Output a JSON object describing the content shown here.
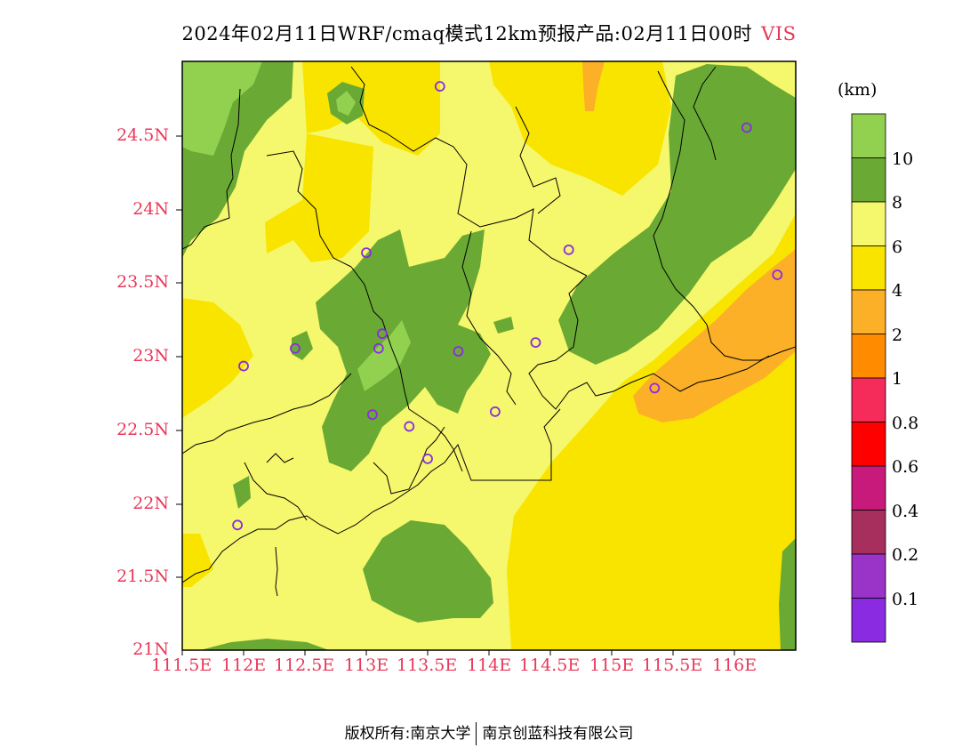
{
  "title": {
    "main": "2024年02月11日WRF/cmaq模式12km预报产品:02月11日00时",
    "variable": "VIS"
  },
  "axes": {
    "lat_ticks": [
      "24.5N",
      "24N",
      "23.5N",
      "23N",
      "22.5N",
      "22N",
      "21.5N",
      "21N"
    ],
    "lon_ticks": [
      "111.5E",
      "112E",
      "112.5E",
      "113E",
      "113.5E",
      "114E",
      "114.5E",
      "115E",
      "115.5E",
      "116E"
    ],
    "lat_range": [
      21.0,
      25.0
    ],
    "lon_range": [
      111.5,
      116.5
    ]
  },
  "legend": {
    "unit": "(km)",
    "labels": [
      "10",
      "8",
      "6",
      "4",
      "2",
      "1",
      "0.8",
      "0.6",
      "0.4",
      "0.2",
      "0.1"
    ],
    "colors": [
      "#92d050",
      "#6aaa34",
      "#f5f76c",
      "#f9e400",
      "#fbb028",
      "#ff8c00",
      "#f52c5a",
      "#ff0000",
      "#c81a7a",
      "#a72f5e",
      "#9a33c8",
      "#8a2be2"
    ]
  },
  "colors": {
    "vis_above_10": "#92d050",
    "vis_8_10": "#6aaa34",
    "vis_6_8": "#f5f76c",
    "vis_4_6": "#f9e400",
    "vis_2_4": "#fbb028",
    "vis_1_2": "#ff8c00",
    "station_marker": "#8a2be2",
    "tick_label": "#e8385a"
  },
  "stations": [
    {
      "lon": 113.6,
      "lat": 24.83
    },
    {
      "lon": 116.1,
      "lat": 24.55
    },
    {
      "lon": 113.0,
      "lat": 23.7
    },
    {
      "lon": 114.65,
      "lat": 23.72
    },
    {
      "lon": 116.35,
      "lat": 23.55
    },
    {
      "lon": 113.13,
      "lat": 23.15
    },
    {
      "lon": 112.42,
      "lat": 23.05
    },
    {
      "lon": 113.1,
      "lat": 23.05
    },
    {
      "lon": 113.75,
      "lat": 23.03
    },
    {
      "lon": 114.38,
      "lat": 23.09
    },
    {
      "lon": 112.0,
      "lat": 22.93
    },
    {
      "lon": 115.35,
      "lat": 22.78
    },
    {
      "lon": 113.05,
      "lat": 22.6
    },
    {
      "lon": 114.05,
      "lat": 22.62
    },
    {
      "lon": 113.35,
      "lat": 22.52
    },
    {
      "lon": 113.5,
      "lat": 22.3
    },
    {
      "lon": 111.95,
      "lat": 21.85
    }
  ],
  "footer": {
    "left": "版权所有:南京大学",
    "right": "南京创蓝科技有限公司"
  }
}
